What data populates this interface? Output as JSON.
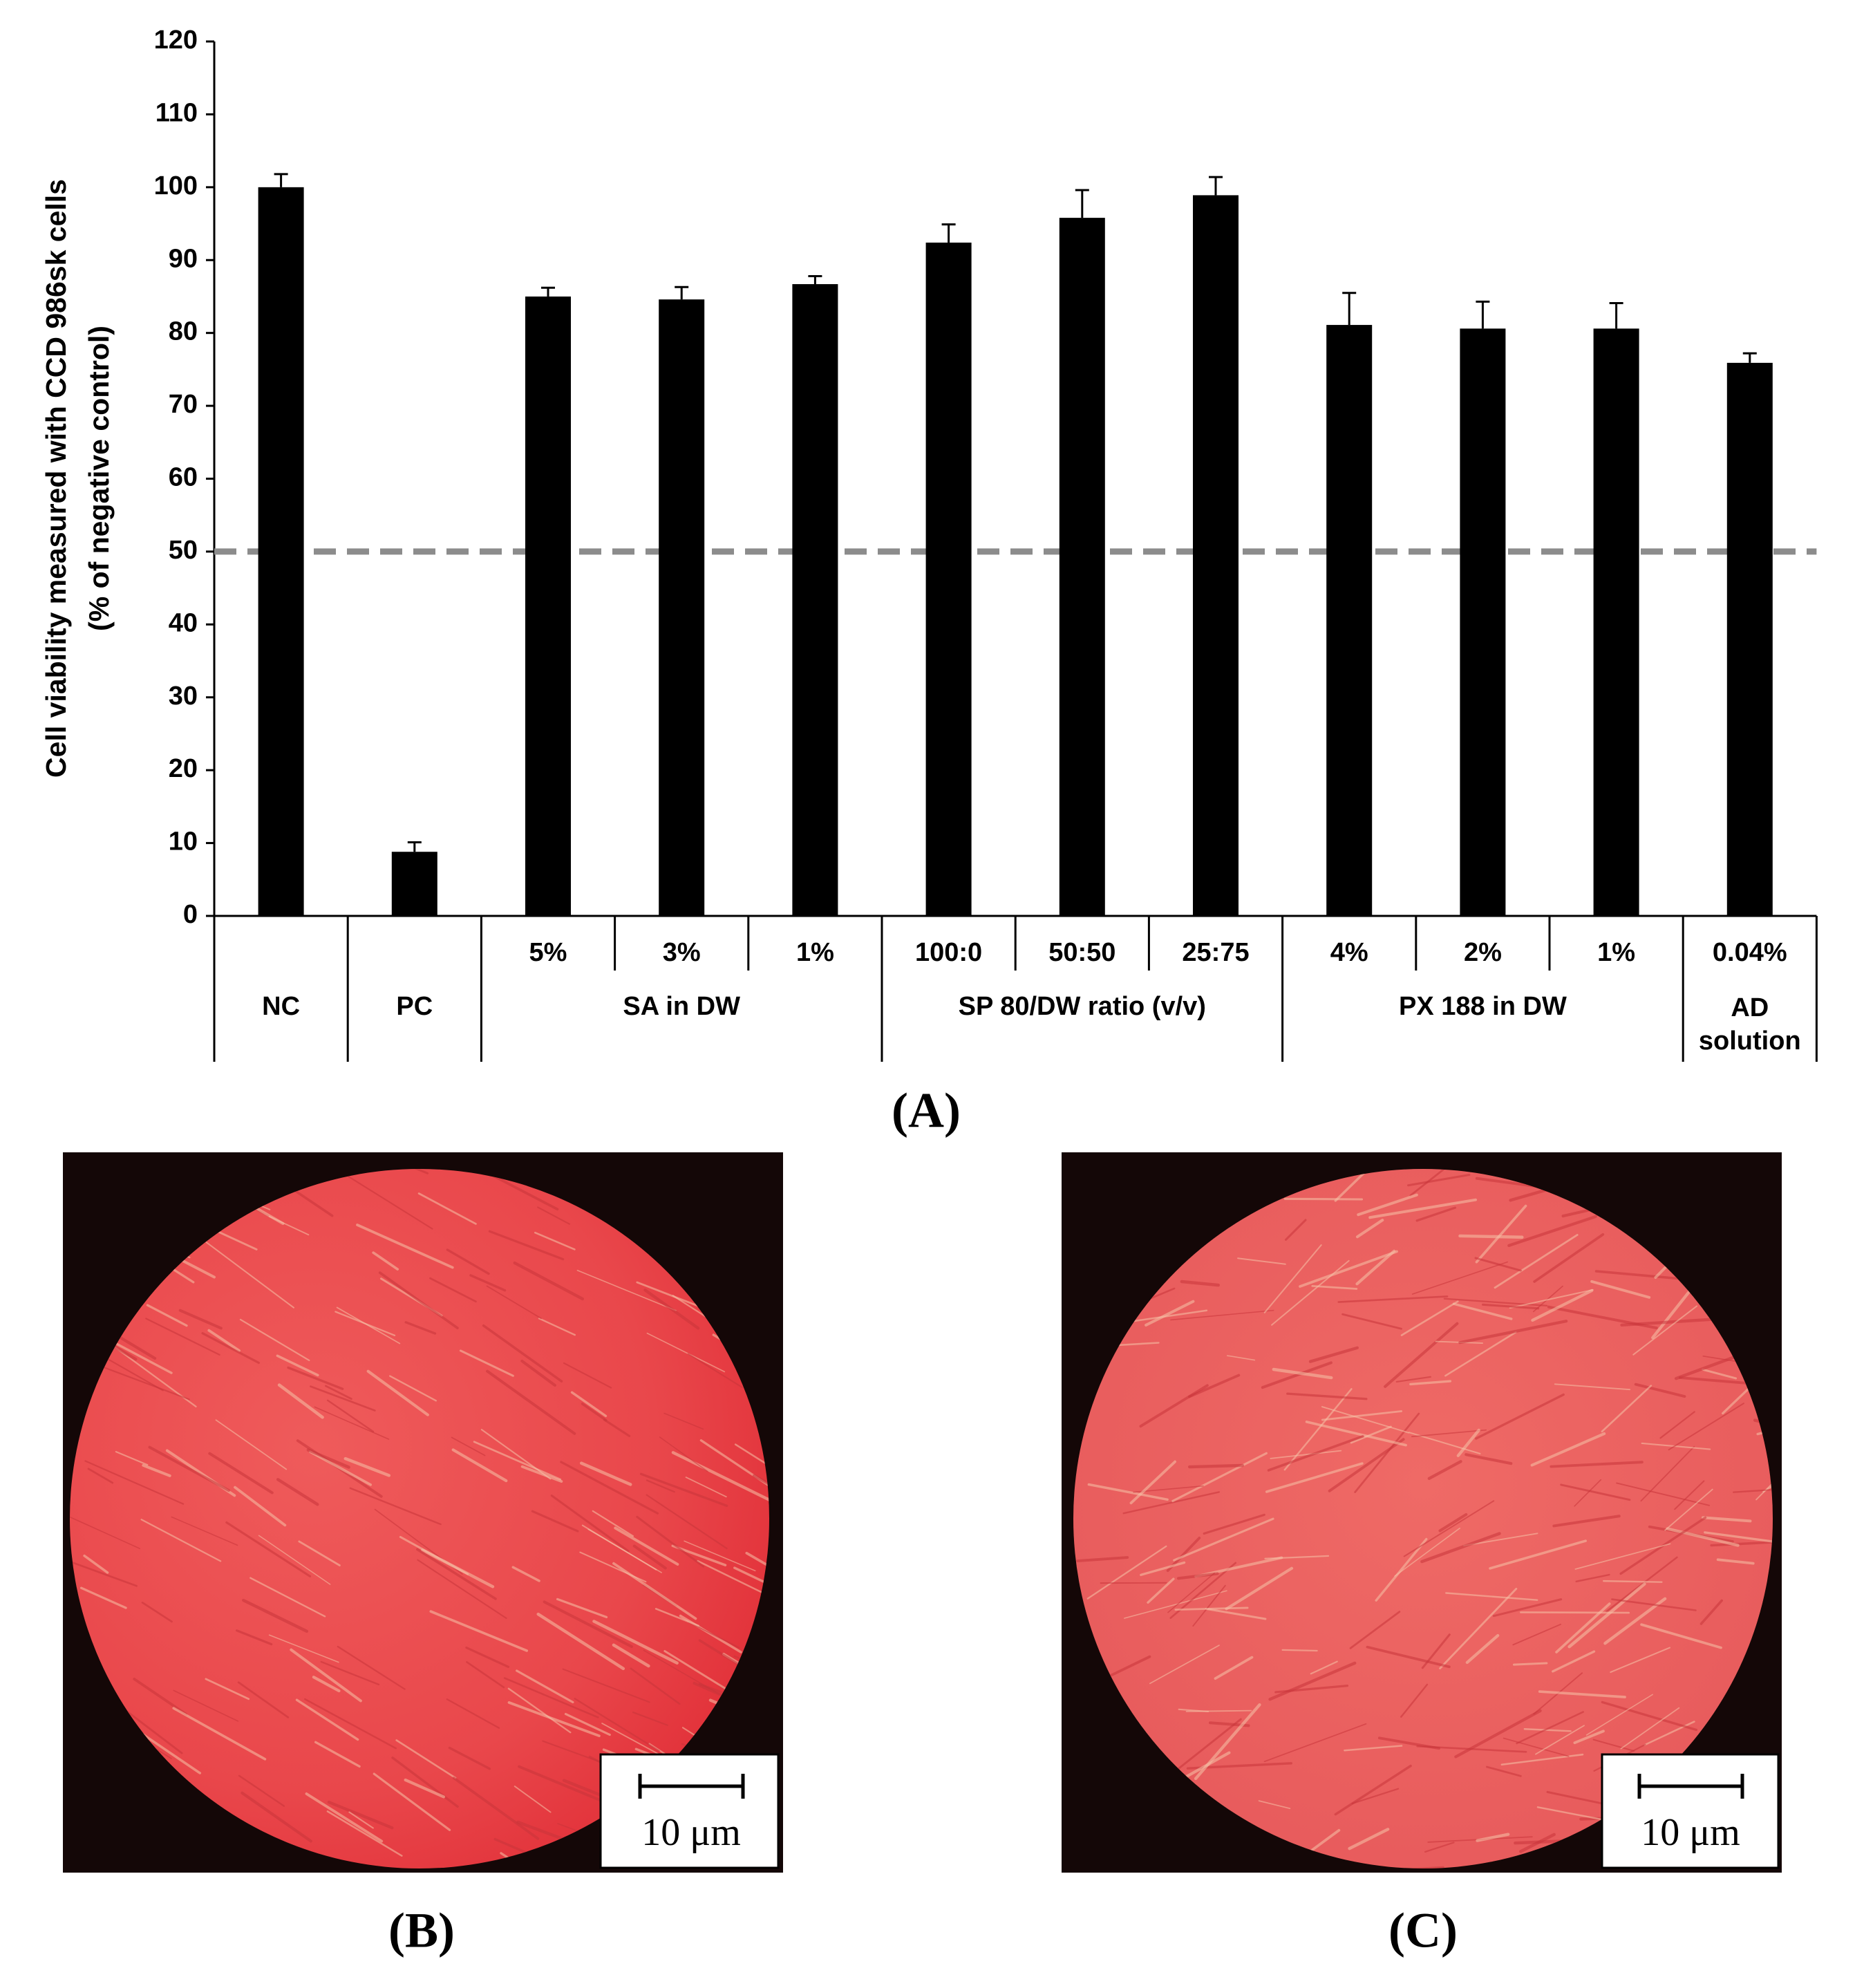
{
  "chart_data": {
    "type": "bar",
    "ylabel": [
      "Cell viability measured with CCD 986sk cells",
      "(% of negative control)"
    ],
    "groups": [
      {
        "name": "NC",
        "categories": [
          null
        ]
      },
      {
        "name": "PC",
        "categories": [
          null
        ]
      },
      {
        "name": "SA in DW",
        "categories": [
          "5%",
          "3%",
          "1%"
        ]
      },
      {
        "name": "SP 80/DW ratio (v/v)",
        "categories": [
          "100:0",
          "50:50",
          "25:75"
        ]
      },
      {
        "name": "PX 188 in DW",
        "categories": [
          "4%",
          "2%",
          "1%"
        ]
      },
      {
        "name": "AD solution",
        "categories": [
          "0.04%"
        ]
      }
    ],
    "values": [
      100,
      8.8,
      85,
      84.6,
      86.7,
      92.4,
      95.8,
      98.9,
      81.1,
      80.6,
      80.6,
      75.9
    ],
    "errors": [
      1.8,
      1.3,
      1.2,
      1.7,
      1.1,
      2.5,
      3.8,
      2.5,
      4.4,
      3.7,
      3.5,
      1.3
    ],
    "color": "#000000",
    "ylim": [
      0,
      120
    ],
    "yticks": [
      0,
      10,
      20,
      30,
      40,
      50,
      60,
      70,
      80,
      90,
      100,
      110,
      120
    ],
    "hline": 50,
    "hline_color": "#8c8c8c",
    "hline_style": "dashed",
    "panel_label": "(A)"
  },
  "images": [
    {
      "panel_label": "(B)",
      "scale_bar": "10 μm"
    },
    {
      "panel_label": "(C)",
      "scale_bar": "10 μm"
    }
  ]
}
